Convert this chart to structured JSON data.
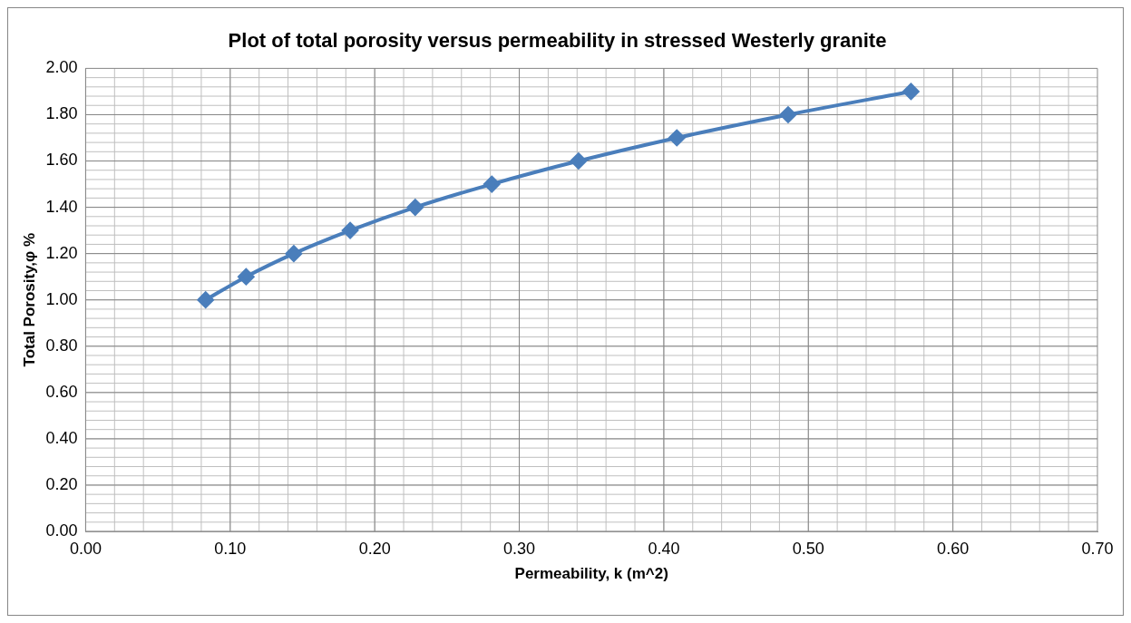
{
  "chart_data": {
    "type": "line",
    "title": "Plot of total porosity versus permeability in stressed Westerly granite",
    "xlabel": "Permeability, k (m^2)",
    "ylabel": "Total Porosity,φ %",
    "x": [
      0.083,
      0.111,
      0.144,
      0.183,
      0.228,
      0.281,
      0.341,
      0.409,
      0.486,
      0.571
    ],
    "series": [
      {
        "color": "#4a7ebb",
        "values": [
          1.0,
          1.1,
          1.2,
          1.3,
          1.4,
          1.5,
          1.6,
          1.7,
          1.8,
          1.9
        ]
      }
    ],
    "xlim": [
      0,
      0.7
    ],
    "xticks": [
      {
        "value": 0,
        "label": "0.00"
      },
      {
        "value": 0.1,
        "label": "0.10"
      },
      {
        "value": 0.2,
        "label": "0.20"
      },
      {
        "value": 0.3,
        "label": "0.30"
      },
      {
        "value": 0.4,
        "label": "0.40"
      },
      {
        "value": 0.5,
        "label": "0.50"
      },
      {
        "value": 0.6,
        "label": "0.60"
      },
      {
        "value": 0.7,
        "label": "0.70"
      }
    ],
    "ylim": [
      0,
      2
    ],
    "yticks": [
      {
        "value": 0,
        "label": "0.00"
      },
      {
        "value": 0.2,
        "label": "0.20"
      },
      {
        "value": 0.4,
        "label": "0.40"
      },
      {
        "value": 0.6,
        "label": "0.60"
      },
      {
        "value": 0.8,
        "label": "0.80"
      },
      {
        "value": 1,
        "label": "1.00"
      },
      {
        "value": 1.2,
        "label": "1.20"
      },
      {
        "value": 1.4,
        "label": "1.40"
      },
      {
        "value": 1.6,
        "label": "1.60"
      },
      {
        "value": 1.8,
        "label": "1.80"
      },
      {
        "value": 2,
        "label": "2.00"
      }
    ],
    "grid": true,
    "legend": false,
    "marker": "diamond",
    "line_style": "solid"
  }
}
